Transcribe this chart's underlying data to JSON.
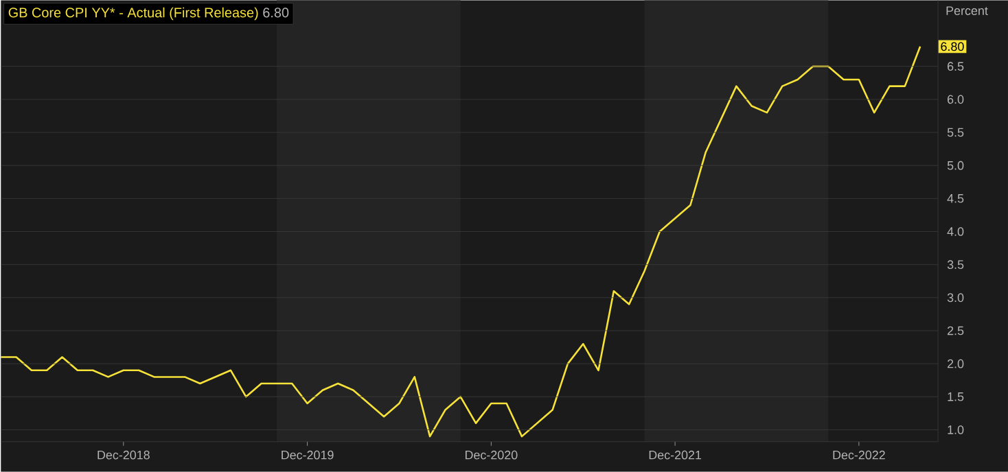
{
  "chart_data": {
    "type": "line",
    "ylabel": "Percent",
    "x": [
      "2018-04",
      "2018-05",
      "2018-06",
      "2018-07",
      "2018-08",
      "2018-09",
      "2018-10",
      "2018-11",
      "2018-12",
      "2019-01",
      "2019-02",
      "2019-03",
      "2019-04",
      "2019-05",
      "2019-06",
      "2019-07",
      "2019-08",
      "2019-09",
      "2019-10",
      "2019-11",
      "2019-12",
      "2020-01",
      "2020-02",
      "2020-03",
      "2020-04",
      "2020-05",
      "2020-06",
      "2020-07",
      "2020-08",
      "2020-09",
      "2020-10",
      "2020-11",
      "2020-12",
      "2021-01",
      "2021-02",
      "2021-03",
      "2021-04",
      "2021-05",
      "2021-06",
      "2021-07",
      "2021-08",
      "2021-09",
      "2021-10",
      "2021-11",
      "2021-12",
      "2022-01",
      "2022-02",
      "2022-03",
      "2022-04",
      "2022-05",
      "2022-06",
      "2022-07",
      "2022-08",
      "2022-09",
      "2022-10",
      "2022-11",
      "2022-12",
      "2023-01",
      "2023-02",
      "2023-03",
      "2023-04"
    ],
    "series": [
      {
        "name": "GB Core CPI YY* - Actual (First Release)",
        "color": "#f7e23a",
        "values": [
          2.1,
          2.1,
          1.9,
          1.9,
          2.1,
          1.9,
          1.9,
          1.8,
          1.9,
          1.9,
          1.8,
          1.8,
          1.8,
          1.7,
          1.8,
          1.9,
          1.5,
          1.7,
          1.7,
          1.7,
          1.4,
          1.6,
          1.7,
          1.6,
          1.4,
          1.2,
          1.4,
          1.8,
          0.9,
          1.3,
          1.5,
          1.1,
          1.4,
          1.4,
          0.9,
          1.1,
          1.3,
          2.0,
          2.3,
          1.9,
          3.1,
          2.9,
          3.4,
          4.0,
          4.2,
          4.4,
          5.2,
          5.7,
          6.2,
          5.9,
          5.8,
          6.2,
          6.3,
          6.5,
          6.5,
          6.3,
          6.3,
          5.8,
          6.2,
          6.2,
          6.8
        ],
        "value_labels": [
          null,
          null,
          null,
          null,
          null,
          null,
          null,
          null,
          null,
          null,
          null,
          null,
          null,
          null,
          null,
          null,
          null,
          null,
          null,
          null,
          null,
          null,
          null,
          null,
          null,
          null,
          null,
          null,
          null,
          null,
          null,
          null,
          null,
          null,
          null,
          null,
          null,
          null,
          null,
          null,
          null,
          null,
          null,
          null,
          null,
          null,
          null,
          null,
          null,
          null,
          null,
          null,
          null,
          null,
          null,
          null,
          null,
          null,
          null,
          null,
          "6.80"
        ]
      }
    ],
    "annotations": [
      "6.80"
    ],
    "xlim": [
      "2018-04",
      "2023-05-06"
    ],
    "xticks": [
      {
        "value": "2018-12",
        "label": "Dec-2018"
      },
      {
        "value": "2019-12",
        "label": "Dec-2019"
      },
      {
        "value": "2020-12",
        "label": "Dec-2020"
      },
      {
        "value": "2021-12",
        "label": "Dec-2021"
      },
      {
        "value": "2022-12",
        "label": "Dec-2022"
      }
    ],
    "ylim": [
      0.82,
      7.5
    ],
    "yticks": [
      {
        "value": 1,
        "label": "1.0"
      },
      {
        "value": 1.5,
        "label": "1.5"
      },
      {
        "value": 2,
        "label": "2.0"
      },
      {
        "value": 2.5,
        "label": "2.5"
      },
      {
        "value": 3,
        "label": "3.0"
      },
      {
        "value": 3.5,
        "label": "3.5"
      },
      {
        "value": 4,
        "label": "4.0"
      },
      {
        "value": 4.5,
        "label": "4.5"
      },
      {
        "value": 5,
        "label": "5.0"
      },
      {
        "value": 5.5,
        "label": "5.5"
      },
      {
        "value": 6,
        "label": "6.0"
      },
      {
        "value": 6.5,
        "label": "6.5"
      }
    ],
    "bands": [
      {
        "axis": "x",
        "from": "2019-10",
        "to": "2020-10",
        "color": "#242424"
      },
      {
        "axis": "x",
        "from": "2021-10",
        "to": "2022-10",
        "color": "#242424"
      }
    ],
    "grid": "y",
    "marker": "none",
    "line_style": "solid"
  }
}
